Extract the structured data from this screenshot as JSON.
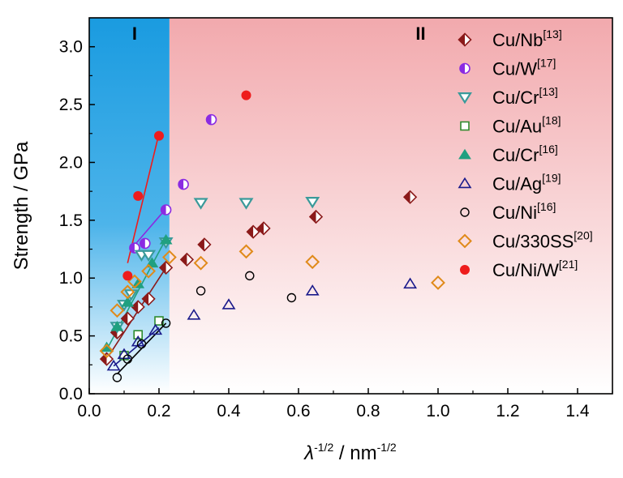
{
  "chart_data": {
    "type": "scatter",
    "xlabel": {
      "symbol": "λ",
      "sup1": "-1/2",
      "unit": " / nm",
      "sup2": "-1/2"
    },
    "ylabel": "Strength / GPa",
    "xlim": [
      0.0,
      1.5
    ],
    "ylim": [
      0.0,
      3.25
    ],
    "xticks": [
      "0.0",
      "0.2",
      "0.4",
      "0.6",
      "0.8",
      "1.0",
      "1.2",
      "1.4"
    ],
    "yticks": [
      "0.0",
      "0.5",
      "1.0",
      "1.5",
      "2.0",
      "2.5",
      "3.0"
    ],
    "regions": [
      {
        "label": "I",
        "x_range": [
          0.0,
          0.23
        ],
        "color_top": "#1a9be0",
        "color_bottom": "#ffffff"
      },
      {
        "label": "II",
        "x_range": [
          0.23,
          1.5
        ],
        "color_top": "#f2a9ad",
        "color_bottom": "#ffffff"
      }
    ],
    "grid": false,
    "legend_position": "top-right",
    "series": [
      {
        "name": "Cu/Nb",
        "ref": "[13]",
        "marker": "diamond-half",
        "color": "#8b1a1a",
        "x": [
          0.05,
          0.08,
          0.11,
          0.14,
          0.17,
          0.22,
          0.28,
          0.33,
          0.47,
          0.5,
          0.65,
          0.92
        ],
        "y": [
          0.3,
          0.53,
          0.65,
          0.75,
          0.82,
          1.09,
          1.16,
          1.29,
          1.4,
          1.43,
          1.53,
          1.7
        ],
        "fit": [
          [
            0.05,
            0.3
          ],
          [
            0.22,
            1.09
          ]
        ]
      },
      {
        "name": "Cu/W",
        "ref": "[17]",
        "marker": "circle-half",
        "color": "#8a2be2",
        "x": [
          0.13,
          0.16,
          0.22,
          0.27,
          0.35
        ],
        "y": [
          1.26,
          1.3,
          1.59,
          1.81,
          2.37
        ],
        "fit": [
          [
            0.12,
            1.25
          ],
          [
            0.22,
            1.6
          ]
        ]
      },
      {
        "name": "Cu/Cr",
        "ref": "[13]",
        "marker": "triangle-down",
        "color": "#3a9a9a",
        "x": [
          0.08,
          0.1,
          0.12,
          0.15,
          0.17,
          0.22,
          0.32,
          0.45,
          0.64
        ],
        "y": [
          0.58,
          0.77,
          0.86,
          1.2,
          1.2,
          1.31,
          1.65,
          1.65,
          1.66
        ],
        "fit": null
      },
      {
        "name": "Cu/Au",
        "ref": "[18]",
        "marker": "square",
        "color": "#2e8b2e",
        "x": [
          0.1,
          0.14,
          0.2
        ],
        "y": [
          0.33,
          0.51,
          0.63
        ],
        "fit": null
      },
      {
        "name": "Cu/Cr",
        "ref": "[16]",
        "marker": "triangle-up-filled",
        "color": "#20a080",
        "x": [
          0.05,
          0.08,
          0.11,
          0.14,
          0.18,
          0.22
        ],
        "y": [
          0.4,
          0.58,
          0.79,
          0.95,
          1.13,
          1.33
        ],
        "fit": [
          [
            0.05,
            0.38
          ],
          [
            0.22,
            1.34
          ]
        ]
      },
      {
        "name": "Cu/Ag",
        "ref": "[19]",
        "marker": "triangle-up",
        "color": "#1a1a8b",
        "x": [
          0.07,
          0.1,
          0.14,
          0.19,
          0.3,
          0.4,
          0.64,
          0.92
        ],
        "y": [
          0.24,
          0.34,
          0.45,
          0.55,
          0.68,
          0.77,
          0.89,
          0.95
        ],
        "fit": [
          [
            0.07,
            0.24
          ],
          [
            0.2,
            0.57
          ]
        ]
      },
      {
        "name": "Cu/Ni",
        "ref": "[16]",
        "marker": "circle",
        "color": "#000000",
        "x": [
          0.08,
          0.11,
          0.15,
          0.22,
          0.32,
          0.46,
          0.58
        ],
        "y": [
          0.14,
          0.3,
          0.43,
          0.61,
          0.89,
          1.02,
          0.83
        ],
        "fit": [
          [
            0.08,
            0.17
          ],
          [
            0.22,
            0.61
          ]
        ]
      },
      {
        "name": "Cu/330SS",
        "ref": "[20]",
        "marker": "diamond",
        "color": "#e08a1a",
        "x": [
          0.05,
          0.08,
          0.11,
          0.13,
          0.17,
          0.23,
          0.32,
          0.45,
          0.64,
          1.0
        ],
        "y": [
          0.37,
          0.72,
          0.88,
          0.97,
          1.06,
          1.18,
          1.13,
          1.23,
          1.14,
          0.96
        ],
        "fit": null
      },
      {
        "name": "Cu/Ni/W",
        "ref": "[21]",
        "marker": "circle-filled",
        "color": "#ee1c1c",
        "x": [
          0.11,
          0.14,
          0.2,
          0.45
        ],
        "y": [
          1.02,
          1.71,
          2.23,
          2.58
        ],
        "fit": [
          [
            0.11,
            1.13
          ],
          [
            0.2,
            2.25
          ]
        ]
      }
    ]
  }
}
